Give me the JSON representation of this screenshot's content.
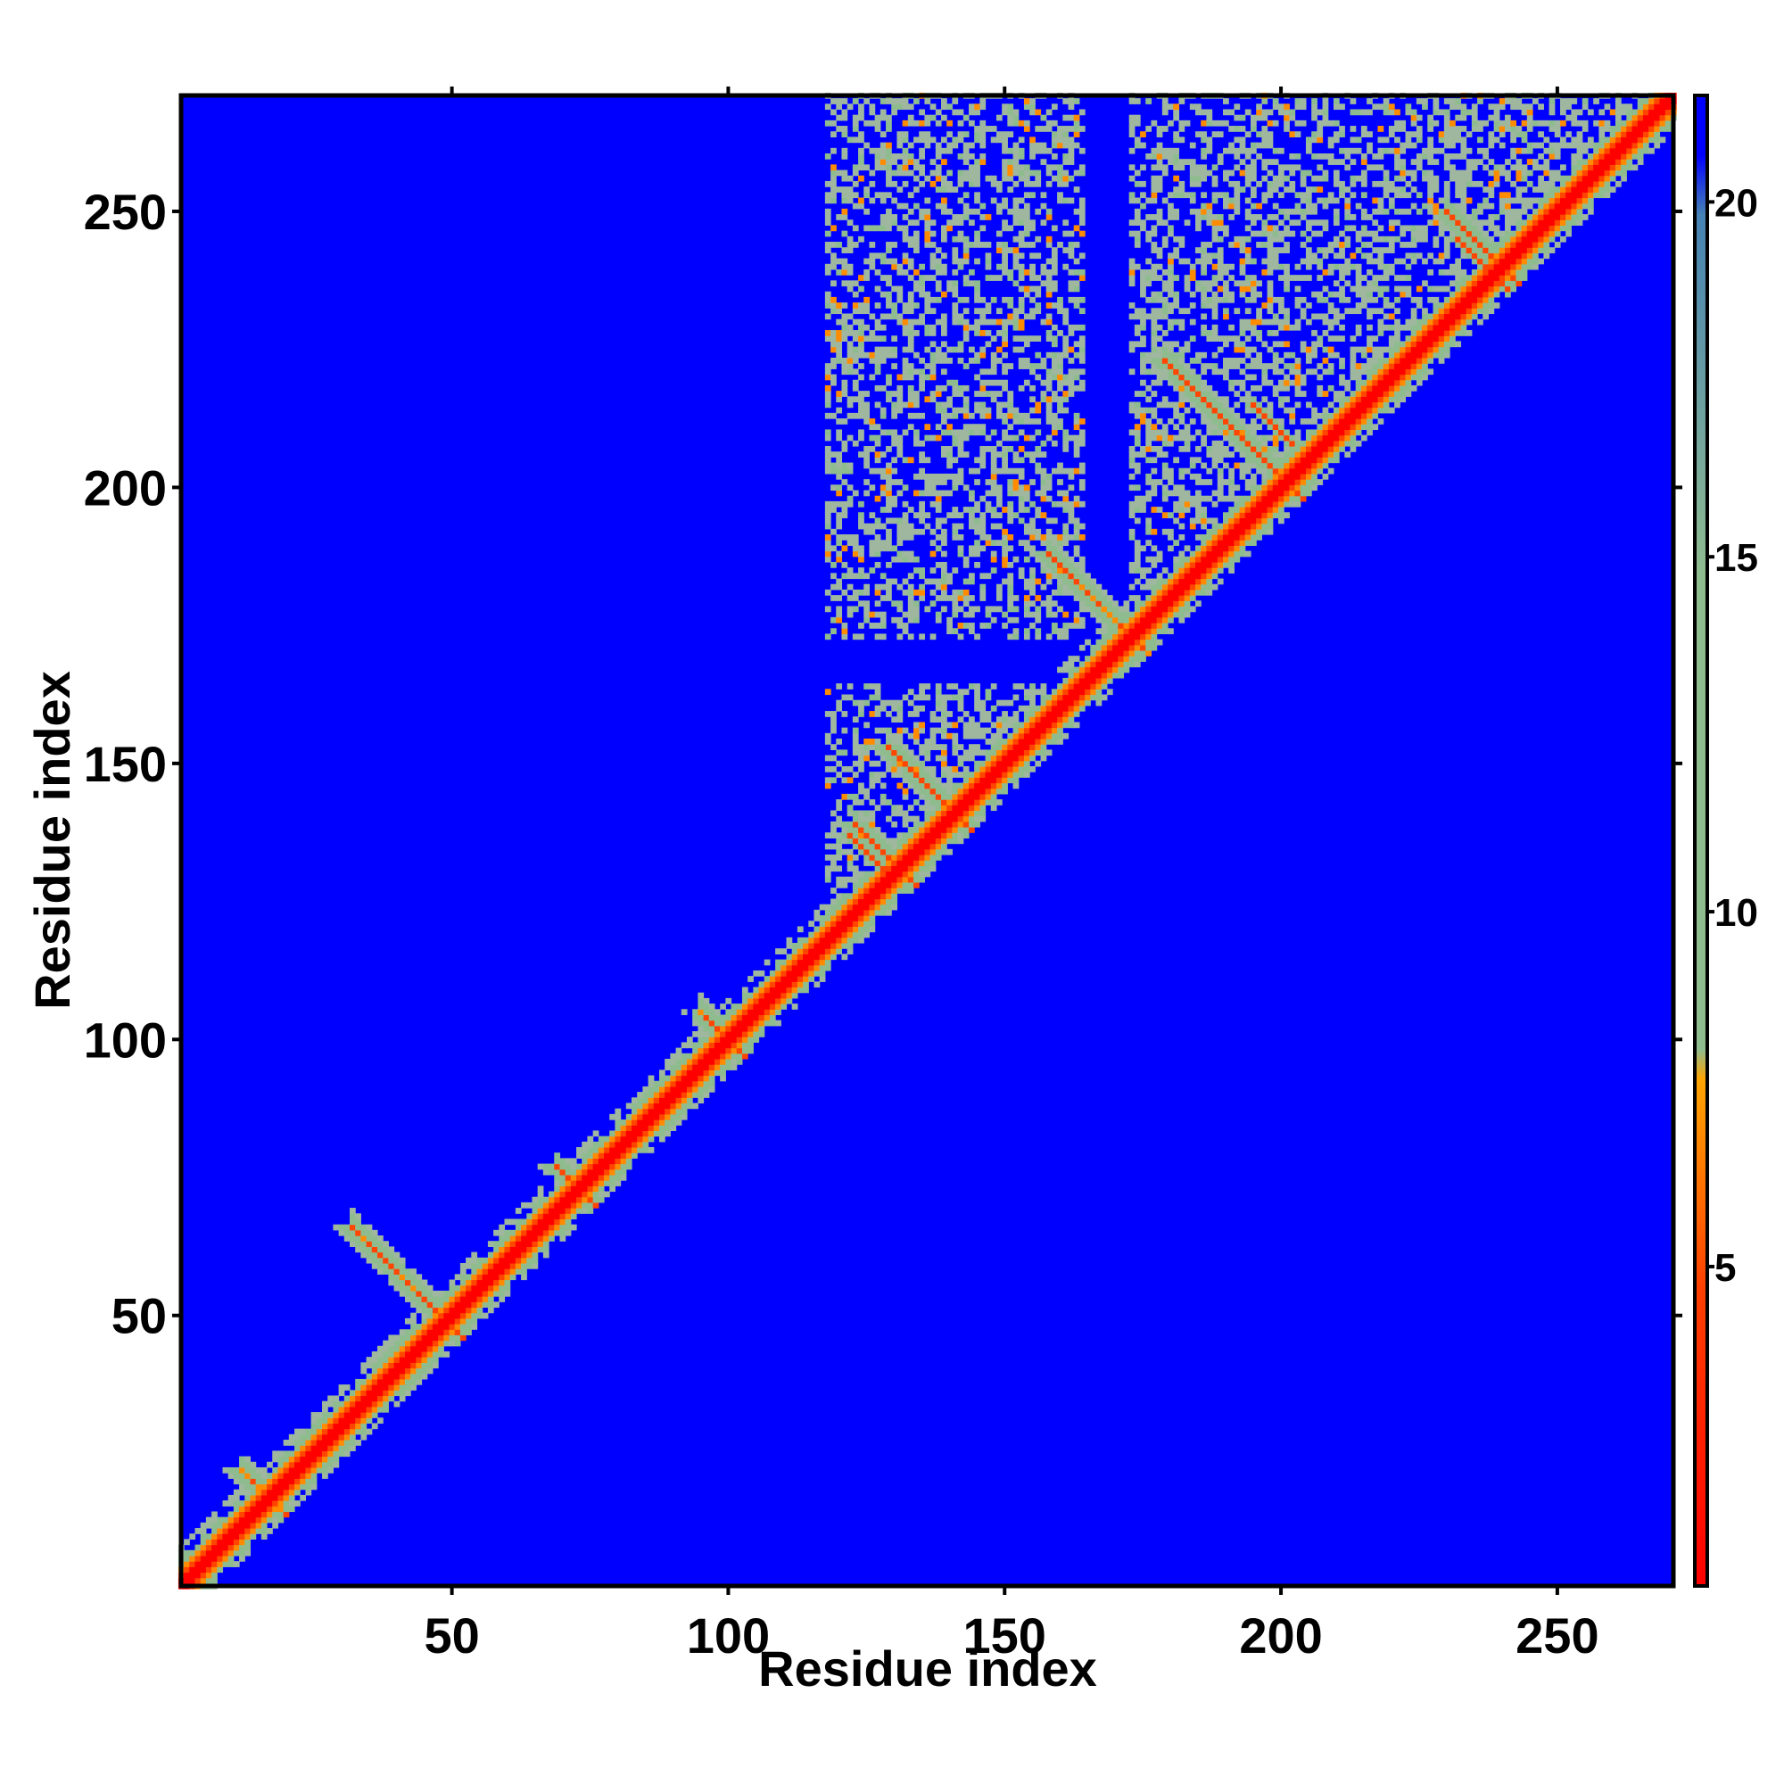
{
  "chart_data": {
    "type": "heatmap",
    "title": "",
    "xlabel": "Residue index",
    "ylabel": "Residue index",
    "xlim": [
      1,
      271
    ],
    "ylim": [
      1,
      271
    ],
    "x_ticks": [
      50,
      100,
      150,
      200,
      250
    ],
    "y_ticks": [
      50,
      100,
      150,
      200,
      250
    ],
    "x_tick_labels": [
      "50",
      "100",
      "150",
      "200",
      "250"
    ],
    "y_tick_labels": [
      "50",
      "100",
      "150",
      "200",
      "250"
    ],
    "colorbar": {
      "range": [
        0.5,
        21.5
      ],
      "ticks": [
        5,
        10,
        15,
        20
      ],
      "tick_labels": [
        "5",
        "10",
        "15",
        "20"
      ],
      "colors": {
        "low": "#ff0000",
        "mid_low": "#ff8c00",
        "mid": "#8fbc8f",
        "mid_high": "#4682b4",
        "background": "#0000ff"
      },
      "threshold_contact": 8,
      "threshold_max": 20
    },
    "features": {
      "diagonal": {
        "start": 1,
        "end": 271
      },
      "antiparallel_crosses": [
        {
          "center": [
            49,
            49
          ],
          "half_length": 17
        },
        {
          "center": [
            141,
            141
          ],
          "half_length": 12
        },
        {
          "center": [
            131,
            131
          ],
          "half_length": 8
        },
        {
          "center": [
            173,
            173
          ],
          "half_length": 15
        },
        {
          "center": [
            201,
            201
          ],
          "half_length": 22
        },
        {
          "center": [
            240,
            240
          ],
          "half_length": 10
        }
      ],
      "small_crosses": [
        {
          "center": [
            17,
            17
          ],
          "half_length": 5
        },
        {
          "center": [
            73,
            73
          ],
          "half_length": 4
        },
        {
          "center": [
            100,
            100
          ],
          "half_length": 5
        }
      ],
      "upper_block_region": {
        "x": [
          115,
          271
        ],
        "y": [
          115,
          271
        ]
      }
    }
  }
}
